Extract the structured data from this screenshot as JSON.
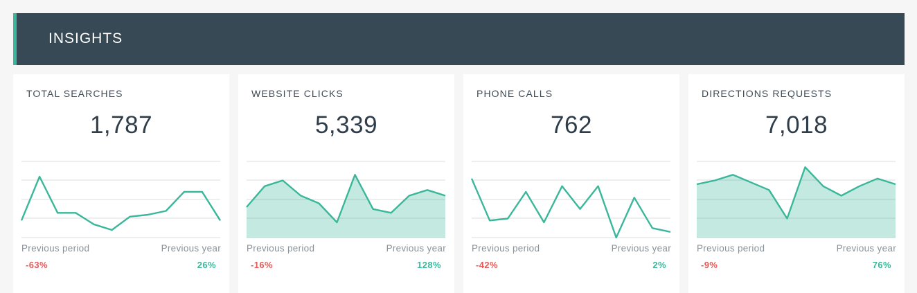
{
  "header": {
    "title": "INSIGHTS"
  },
  "colors": {
    "accent": "#3ab79a",
    "negative": "#e35b58",
    "header_bg": "#364954"
  },
  "cards": [
    {
      "title": "TOTAL SEARCHES",
      "value": "1,787",
      "filled": false,
      "prev_period_label": "Previous period",
      "prev_period_value": "-63%",
      "prev_year_label": "Previous year",
      "prev_year_value": "26%"
    },
    {
      "title": "WEBSITE CLICKS",
      "value": "5,339",
      "filled": true,
      "prev_period_label": "Previous period",
      "prev_period_value": "-16%",
      "prev_year_label": "Previous year",
      "prev_year_value": "128%"
    },
    {
      "title": "PHONE CALLS",
      "value": "762",
      "filled": true,
      "prev_period_label": "Previous period",
      "prev_period_value": "-42%",
      "prev_year_label": "Previous year",
      "prev_year_value": "2%"
    },
    {
      "title": "DIRECTIONS REQUESTS",
      "value": "7,018",
      "filled": true,
      "prev_period_label": "Previous period",
      "prev_period_value": "-9%",
      "prev_year_label": "Previous year",
      "prev_year_value": "76%"
    }
  ],
  "chart_data": [
    {
      "type": "line",
      "series": [
        {
          "values": [
            0.09,
            0.32,
            0.13,
            0.13,
            0.07,
            0.04,
            0.11,
            0.12,
            0.14,
            0.24,
            0.24,
            0.09
          ]
        }
      ],
      "ylim": [
        0,
        0.4
      ]
    },
    {
      "type": "area",
      "series": [
        {
          "values": [
            0.16,
            0.27,
            0.3,
            0.22,
            0.18,
            0.08,
            0.33,
            0.15,
            0.13,
            0.22,
            0.25,
            0.22
          ]
        }
      ],
      "ylim": [
        0,
        0.4
      ]
    },
    {
      "type": "line",
      "series": [
        {
          "values": [
            0.31,
            0.09,
            0.1,
            0.24,
            0.08,
            0.27,
            0.15,
            0.27,
            0.0,
            0.21,
            0.05,
            0.03
          ]
        }
      ],
      "ylim": [
        0,
        0.4
      ]
    },
    {
      "type": "area",
      "series": [
        {
          "values": [
            0.28,
            0.3,
            0.33,
            0.29,
            0.25,
            0.1,
            0.37,
            0.27,
            0.22,
            0.27,
            0.31,
            0.28
          ]
        }
      ],
      "ylim": [
        0,
        0.4
      ]
    }
  ]
}
